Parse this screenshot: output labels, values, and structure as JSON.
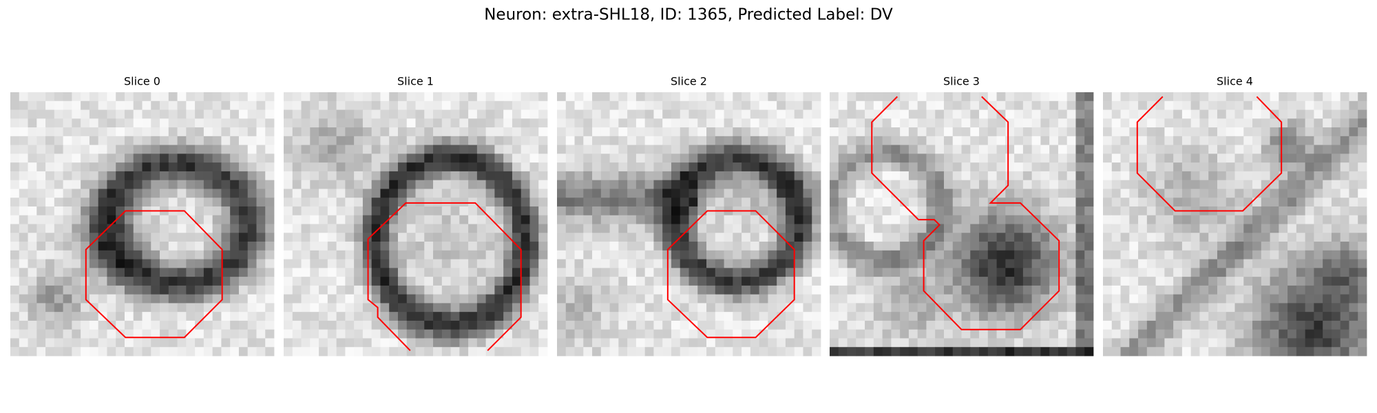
{
  "title": "Neuron: extra-SHL18, ID: 1365, Predicted Label: DV",
  "panels": [
    {
      "title": "Slice 0"
    },
    {
      "title": "Slice 1"
    },
    {
      "title": "Slice 2"
    },
    {
      "title": "Slice 3"
    },
    {
      "title": "Slice 4"
    }
  ]
}
